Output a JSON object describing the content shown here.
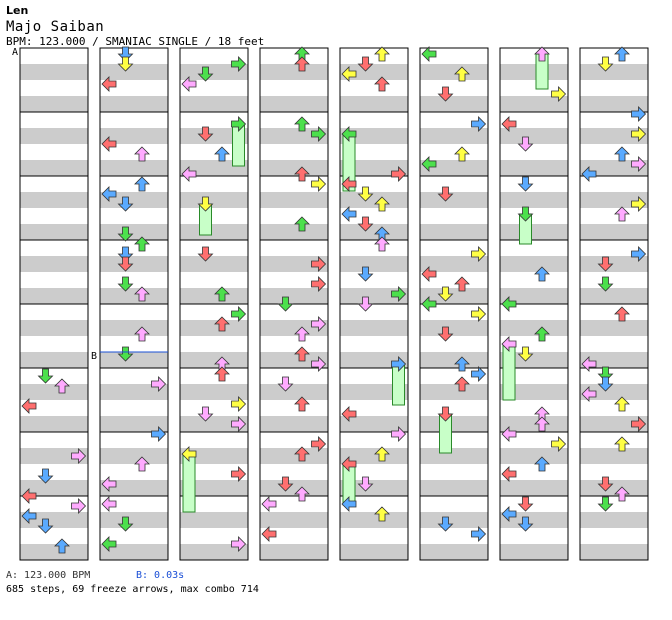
{
  "header": {
    "artist": "Len",
    "song": "Majo Saiban",
    "info": "BPM: 123.000 / SMANIAC SINGLE / 18 feet"
  },
  "markers": {
    "a": "A",
    "b": "B"
  },
  "footer": {
    "bpm_a": "A: 123.000 BPM",
    "bpm_b": "B: 0.03s",
    "stats": "685 steps, 69 freeze arrows, max combo 714"
  },
  "colors": {
    "red": "#ff6f6f",
    "blue": "#5aaaff",
    "green": "#4ce04c",
    "yellow": "#ffff44",
    "pink": "#ffaaff",
    "freeze": "#c8ffc8",
    "stripe": "#cccccc"
  }
}
